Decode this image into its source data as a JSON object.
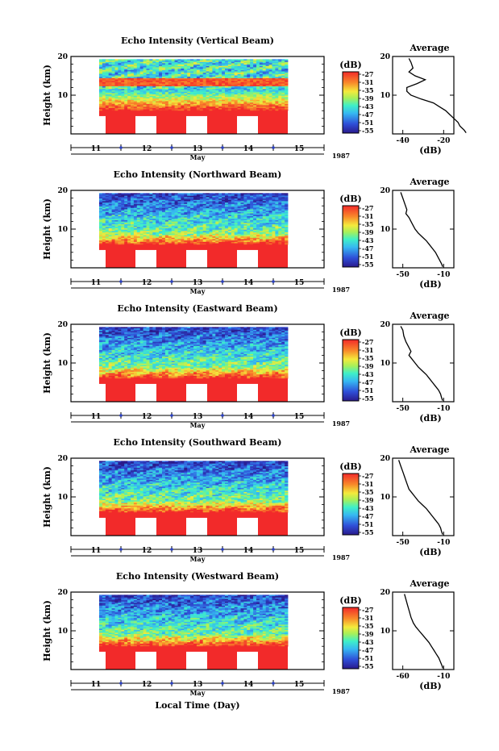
{
  "chart_data": [
    {
      "type": "heatmap",
      "title": "Echo Intensity (Vertical Beam)",
      "ylabel": "Height (km)",
      "xlabel": "May",
      "year_label": "1987",
      "x_ticks": [
        "11",
        "12",
        "13",
        "14",
        "15"
      ],
      "y_ticks": [
        "20",
        "10"
      ],
      "ylim": [
        0,
        20
      ],
      "colorbar": {
        "unit": "(dB)",
        "ticks": [
          "-27",
          "-31",
          "-35",
          "-39",
          "-43",
          "-47",
          "-51",
          "-55"
        ]
      },
      "average_profile": {
        "title": "Average",
        "xlabel": "(dB)",
        "x_ticks": [
          "-40",
          "-20"
        ],
        "y_ticks": [
          "20",
          "10"
        ],
        "points": [
          [
            -37,
            19.5
          ],
          [
            -36,
            18.5
          ],
          [
            -35,
            17
          ],
          [
            -37,
            16
          ],
          [
            -34,
            15
          ],
          [
            -29,
            14
          ],
          [
            -33,
            13
          ],
          [
            -38,
            12
          ],
          [
            -38,
            11
          ],
          [
            -36,
            10
          ],
          [
            -31,
            9
          ],
          [
            -25,
            8
          ],
          [
            -22,
            7
          ],
          [
            -19,
            6
          ],
          [
            -17,
            5
          ],
          [
            -15,
            4
          ],
          [
            -13,
            3
          ],
          [
            -12,
            2
          ],
          [
            -10,
            1
          ],
          [
            -9,
            0.3
          ]
        ]
      }
    },
    {
      "type": "heatmap",
      "title": "Echo Intensity (Northward Beam)",
      "ylabel": "Height (km)",
      "xlabel": "May",
      "year_label": "1987",
      "x_ticks": [
        "11",
        "12",
        "13",
        "14",
        "15"
      ],
      "y_ticks": [
        "20",
        "10"
      ],
      "ylim": [
        0,
        20
      ],
      "colorbar": {
        "unit": "(dB)",
        "ticks": [
          "-27",
          "-31",
          "-35",
          "-39",
          "-43",
          "-47",
          "-51",
          "-55"
        ]
      },
      "average_profile": {
        "title": "Average",
        "xlabel": "(dB)",
        "x_ticks": [
          "-50",
          "-10"
        ],
        "y_ticks": [
          "20",
          "10"
        ],
        "points": [
          [
            -52,
            19.5
          ],
          [
            -50,
            18
          ],
          [
            -48,
            16.5
          ],
          [
            -46,
            15
          ],
          [
            -47,
            14
          ],
          [
            -44,
            13
          ],
          [
            -42,
            12
          ],
          [
            -40,
            11
          ],
          [
            -38,
            10
          ],
          [
            -35,
            9
          ],
          [
            -31,
            8
          ],
          [
            -27,
            7
          ],
          [
            -24,
            6
          ],
          [
            -21,
            5
          ],
          [
            -18,
            4
          ],
          [
            -16,
            3
          ],
          [
            -14,
            2
          ],
          [
            -12,
            1
          ],
          [
            -11,
            0.3
          ]
        ]
      }
    },
    {
      "type": "heatmap",
      "title": "Echo Intensity (Eastward Beam)",
      "ylabel": "Height (km)",
      "xlabel": "May",
      "year_label": "1987",
      "x_ticks": [
        "11",
        "12",
        "13",
        "14",
        "15"
      ],
      "y_ticks": [
        "20",
        "10"
      ],
      "ylim": [
        0,
        20
      ],
      "colorbar": {
        "unit": "(dB)",
        "ticks": [
          "-27",
          "-31",
          "-35",
          "-39",
          "-43",
          "-47",
          "-51",
          "-55"
        ]
      },
      "average_profile": {
        "title": "Average",
        "xlabel": "(dB)",
        "x_ticks": [
          "-50",
          "-10"
        ],
        "y_ticks": [
          "20",
          "10"
        ],
        "points": [
          [
            -52,
            19.5
          ],
          [
            -50,
            18.5
          ],
          [
            -49,
            17
          ],
          [
            -47,
            15.5
          ],
          [
            -44,
            14
          ],
          [
            -42,
            13
          ],
          [
            -44,
            12
          ],
          [
            -41,
            11
          ],
          [
            -38,
            10
          ],
          [
            -35,
            9
          ],
          [
            -31,
            8
          ],
          [
            -27,
            7
          ],
          [
            -24,
            6
          ],
          [
            -21,
            5
          ],
          [
            -18,
            4
          ],
          [
            -15,
            3
          ],
          [
            -13,
            2
          ],
          [
            -12,
            1
          ],
          [
            -11,
            0.3
          ]
        ]
      }
    },
    {
      "type": "heatmap",
      "title": "Echo Intensity (Southward Beam)",
      "ylabel": "Height (km)",
      "xlabel": "May",
      "year_label": "1987",
      "x_ticks": [
        "11",
        "12",
        "13",
        "14",
        "15"
      ],
      "y_ticks": [
        "20",
        "10"
      ],
      "ylim": [
        0,
        20
      ],
      "colorbar": {
        "unit": "(dB)",
        "ticks": [
          "-27",
          "-31",
          "-35",
          "-39",
          "-43",
          "-47",
          "-51",
          "-55"
        ]
      },
      "average_profile": {
        "title": "Average",
        "xlabel": "(dB)",
        "x_ticks": [
          "-50",
          "-10"
        ],
        "y_ticks": [
          "20",
          "10"
        ],
        "points": [
          [
            -54,
            19.5
          ],
          [
            -52,
            18
          ],
          [
            -50,
            16.5
          ],
          [
            -48,
            15
          ],
          [
            -46,
            13.5
          ],
          [
            -44,
            12
          ],
          [
            -41,
            11
          ],
          [
            -38,
            10
          ],
          [
            -35,
            9
          ],
          [
            -31,
            8
          ],
          [
            -27,
            7
          ],
          [
            -24,
            6
          ],
          [
            -21,
            5
          ],
          [
            -18,
            4
          ],
          [
            -15,
            3
          ],
          [
            -13,
            2
          ],
          [
            -12,
            1
          ],
          [
            -11,
            0.3
          ]
        ]
      }
    },
    {
      "type": "heatmap",
      "title": "Echo Intensity (Westward Beam)",
      "ylabel": "Height (km)",
      "xlabel": "May",
      "year_label": "1987",
      "global_xlabel": "Local Time (Day)",
      "x_ticks": [
        "11",
        "12",
        "13",
        "14",
        "15"
      ],
      "y_ticks": [
        "20",
        "10"
      ],
      "ylim": [
        0,
        20
      ],
      "colorbar": {
        "unit": "(dB)",
        "ticks": [
          "-27",
          "-31",
          "-35",
          "-39",
          "-43",
          "-47",
          "-51",
          "-55"
        ]
      },
      "average_profile": {
        "title": "Average",
        "xlabel": "(dB)",
        "x_ticks": [
          "-60",
          "-10"
        ],
        "y_ticks": [
          "20",
          "10"
        ],
        "points": [
          [
            -58,
            19.5
          ],
          [
            -56,
            18
          ],
          [
            -54,
            16.5
          ],
          [
            -52,
            15
          ],
          [
            -50,
            13.5
          ],
          [
            -47,
            12
          ],
          [
            -44,
            11
          ],
          [
            -40,
            10
          ],
          [
            -36,
            9
          ],
          [
            -32,
            8
          ],
          [
            -28,
            7
          ],
          [
            -25,
            6
          ],
          [
            -22,
            5
          ],
          [
            -19,
            4
          ],
          [
            -16,
            3
          ],
          [
            -14,
            2
          ],
          [
            -12,
            1
          ],
          [
            -11,
            0.3
          ]
        ]
      }
    }
  ]
}
